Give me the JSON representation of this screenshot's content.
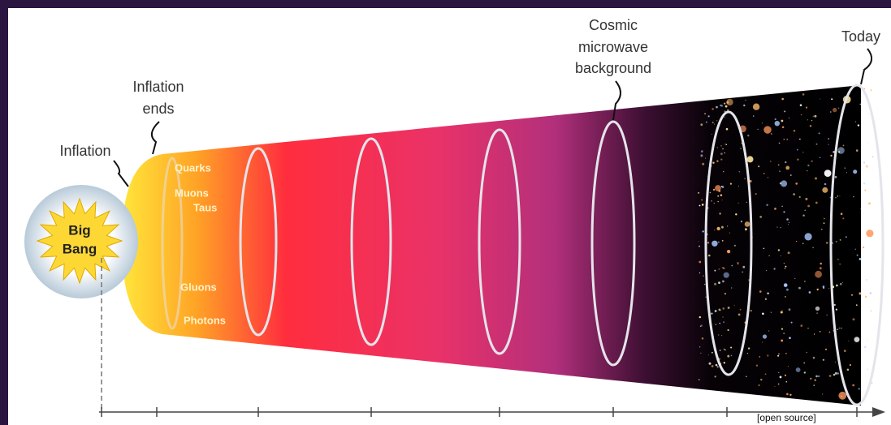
{
  "labels": {
    "inflation": "Inflation",
    "inflation_ends": [
      "Inflation",
      "ends"
    ],
    "cosmic_microwave_background": [
      "Cosmic",
      "microwave",
      "background"
    ],
    "today": "Today",
    "big_bang": [
      "Big",
      "Bang"
    ],
    "particles": [
      "Quarks",
      "Muons",
      "Taus",
      "Gluons",
      "Photons"
    ],
    "credit": "[open source]"
  }
}
